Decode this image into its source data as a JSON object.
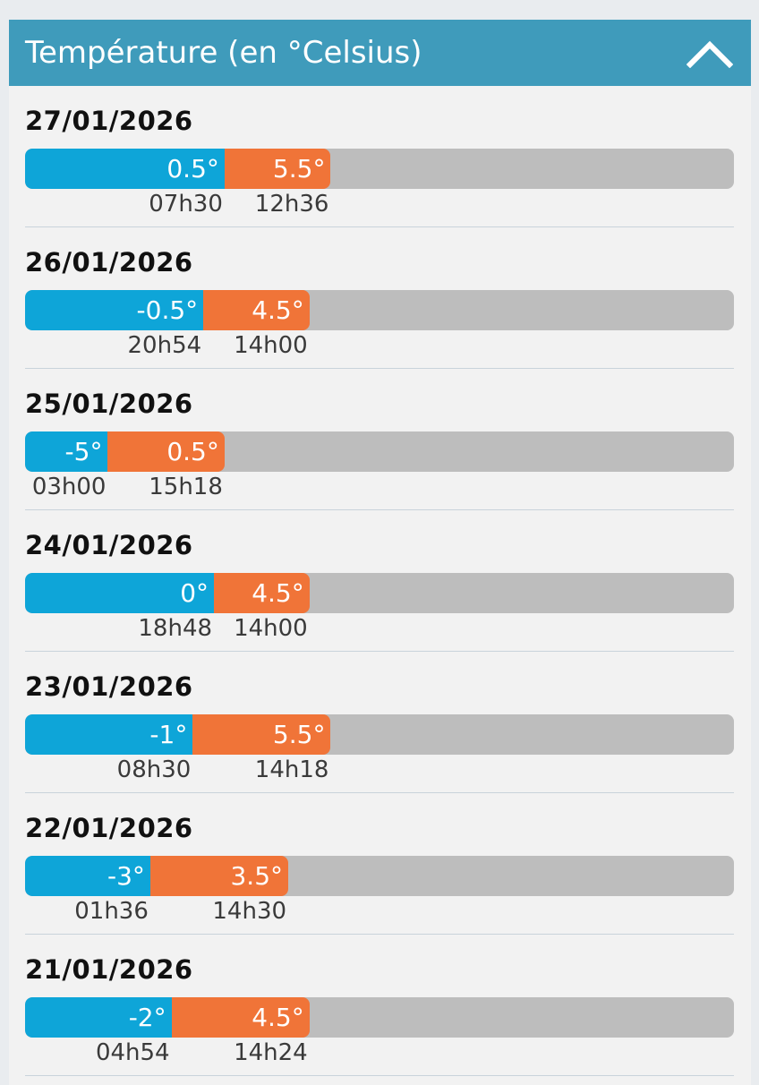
{
  "header": {
    "title": "Température (en °Celsius)",
    "collapse_icon": "chevron-up-icon"
  },
  "scale": {
    "min": -8.9,
    "max": 24.5
  },
  "colors": {
    "header": "#3f9bbb",
    "min": "#0ea5d8",
    "max": "#f07438",
    "track": "#bdbdbd"
  },
  "days": [
    {
      "date": "27/01/2026",
      "min": 0.5,
      "min_label": "0.5°",
      "min_time": "07h30",
      "max": 5.5,
      "max_label": "5.5°",
      "max_time": "12h36"
    },
    {
      "date": "26/01/2026",
      "min": -0.5,
      "min_label": "-0.5°",
      "min_time": "20h54",
      "max": 4.5,
      "max_label": "4.5°",
      "max_time": "14h00"
    },
    {
      "date": "25/01/2026",
      "min": -5,
      "min_label": "-5°",
      "min_time": "03h00",
      "max": 0.5,
      "max_label": "0.5°",
      "max_time": "15h18"
    },
    {
      "date": "24/01/2026",
      "min": 0,
      "min_label": "0°",
      "min_time": "18h48",
      "max": 4.5,
      "max_label": "4.5°",
      "max_time": "14h00"
    },
    {
      "date": "23/01/2026",
      "min": -1,
      "min_label": "-1°",
      "min_time": "08h30",
      "max": 5.5,
      "max_label": "5.5°",
      "max_time": "14h18"
    },
    {
      "date": "22/01/2026",
      "min": -3,
      "min_label": "-3°",
      "min_time": "01h36",
      "max": 3.5,
      "max_label": "3.5°",
      "max_time": "14h30"
    },
    {
      "date": "21/01/2026",
      "min": -2,
      "min_label": "-2°",
      "min_time": "04h54",
      "max": 4.5,
      "max_label": "4.5°",
      "max_time": "14h24"
    }
  ]
}
